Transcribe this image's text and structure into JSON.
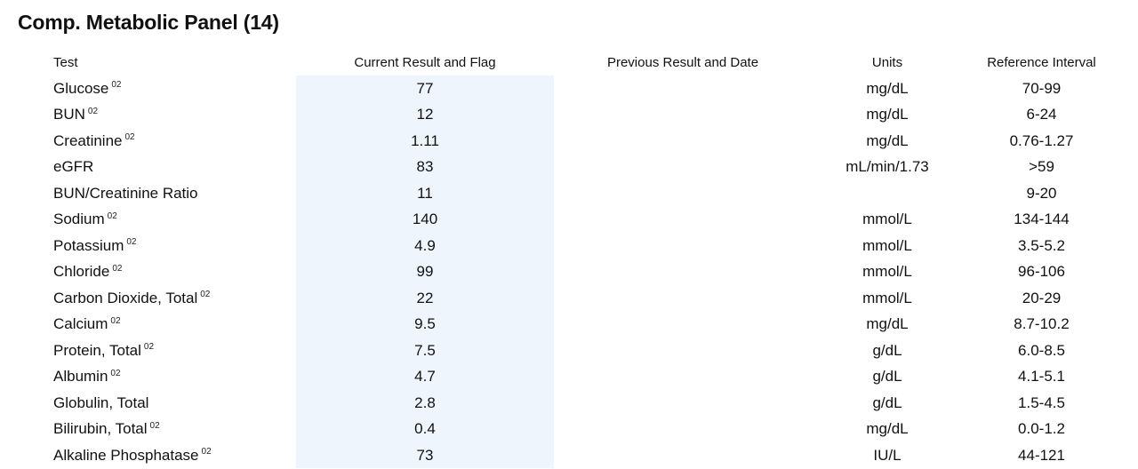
{
  "panel": {
    "title": "Comp. Metabolic Panel (14)"
  },
  "columns": {
    "test": "Test",
    "current": "Current Result and Flag",
    "previous": "Previous Result and Date",
    "units": "Units",
    "reference": "Reference Interval"
  },
  "rows": [
    {
      "test": "Glucose",
      "footnote": "02",
      "current": "77",
      "previous": "",
      "units": "mg/dL",
      "reference": "70-99"
    },
    {
      "test": "BUN",
      "footnote": "02",
      "current": "12",
      "previous": "",
      "units": "mg/dL",
      "reference": "6-24"
    },
    {
      "test": "Creatinine",
      "footnote": "02",
      "current": "1.11",
      "previous": "",
      "units": "mg/dL",
      "reference": "0.76-1.27"
    },
    {
      "test": "eGFR",
      "footnote": "",
      "current": "83",
      "previous": "",
      "units": "mL/min/1.73",
      "reference": ">59"
    },
    {
      "test": "BUN/Creatinine Ratio",
      "footnote": "",
      "current": "11",
      "previous": "",
      "units": "",
      "reference": "9-20"
    },
    {
      "test": "Sodium",
      "footnote": "02",
      "current": "140",
      "previous": "",
      "units": "mmol/L",
      "reference": "134-144"
    },
    {
      "test": "Potassium",
      "footnote": "02",
      "current": "4.9",
      "previous": "",
      "units": "mmol/L",
      "reference": "3.5-5.2"
    },
    {
      "test": "Chloride",
      "footnote": "02",
      "current": "99",
      "previous": "",
      "units": "mmol/L",
      "reference": "96-106"
    },
    {
      "test": "Carbon Dioxide, Total",
      "footnote": "02",
      "current": "22",
      "previous": "",
      "units": "mmol/L",
      "reference": "20-29"
    },
    {
      "test": "Calcium",
      "footnote": "02",
      "current": "9.5",
      "previous": "",
      "units": "mg/dL",
      "reference": "8.7-10.2"
    },
    {
      "test": "Protein, Total",
      "footnote": "02",
      "current": "7.5",
      "previous": "",
      "units": "g/dL",
      "reference": "6.0-8.5"
    },
    {
      "test": "Albumin",
      "footnote": "02",
      "current": "4.7",
      "previous": "",
      "units": "g/dL",
      "reference": "4.1-5.1"
    },
    {
      "test": "Globulin, Total",
      "footnote": "",
      "current": "2.8",
      "previous": "",
      "units": "g/dL",
      "reference": "1.5-4.5"
    },
    {
      "test": "Bilirubin, Total",
      "footnote": "02",
      "current": "0.4",
      "previous": "",
      "units": "mg/dL",
      "reference": "0.0-1.2"
    },
    {
      "test": "Alkaline Phosphatase",
      "footnote": "02",
      "current": "73",
      "previous": "",
      "units": "IU/L",
      "reference": "44-121"
    }
  ],
  "colors": {
    "current_result_highlight": "#eef5fc",
    "text": "#111111",
    "background": "#ffffff"
  }
}
